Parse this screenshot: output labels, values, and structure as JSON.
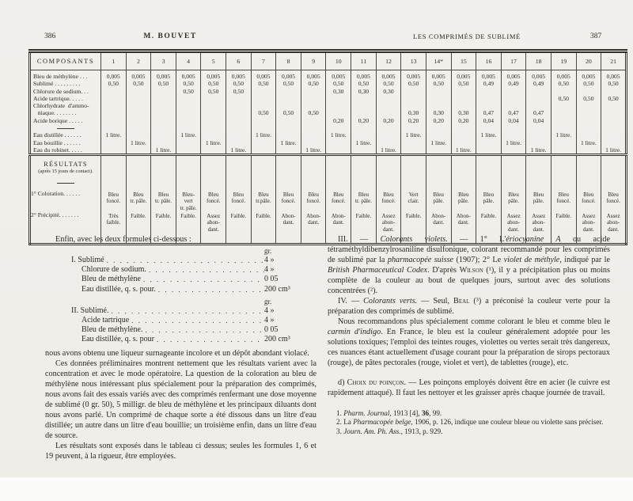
{
  "page": {
    "paper_color": "#f1efeb",
    "ink_color": "#2b2922",
    "header": {
      "left_page": "386",
      "left_title": "M. BOUVET",
      "right_title": "LES COMPRIMÉS DE SUBLIMÉ",
      "right_page": "387"
    }
  },
  "table": {
    "composants_header": "COMPOSANTS",
    "columns": [
      "1",
      "2",
      "3",
      "4",
      "5",
      "6",
      "7",
      "8",
      "9",
      "10",
      "11",
      "12",
      "13",
      "14*",
      "15",
      "16",
      "17",
      "18",
      "19",
      "20",
      "21"
    ],
    "divider_index": 7,
    "line_labels": [
      "Bleu de méthylène . . .",
      "Sublimé . . . . . . . . .",
      "Chlorure de sodium. . .",
      "Acide tartrique. . . . .",
      "Chlorhydrate  d'ammo-",
      "   niaque. . . . . . . .",
      "Acide borique . . . . .",
      "",
      "Eau distillée . . . . . .",
      "Eau bouillie . . . . . .",
      "Eau du robinet. . . . ."
    ],
    "cells": [
      [
        "0,005",
        "0,50",
        "",
        "",
        "",
        "",
        "",
        "",
        "1 litre.",
        "",
        ""
      ],
      [
        "0,005",
        "0,50",
        "",
        "",
        "",
        "",
        "",
        "",
        "",
        "1 litre.",
        ""
      ],
      [
        "0,005",
        "0,50",
        "",
        "",
        "",
        "",
        "",
        "",
        "",
        "",
        "1 litre."
      ],
      [
        "0,005",
        "0,50",
        "0,50",
        "",
        "",
        "",
        "",
        "",
        "1 litre.",
        "",
        ""
      ],
      [
        "0,005",
        "0,50",
        "0,50",
        "",
        "",
        "",
        "",
        "",
        "",
        "1 litre.",
        ""
      ],
      [
        "0,005",
        "0,50",
        "0,50",
        "",
        "",
        "",
        "",
        "",
        "",
        "",
        "1 litre."
      ],
      [
        "0,005",
        "0,50",
        "",
        "",
        "",
        "0,50",
        "",
        "",
        "1 litre.",
        "",
        ""
      ],
      [
        "0,005",
        "0,50",
        "",
        "",
        "",
        "0,50",
        "",
        "",
        "",
        "1 litre.",
        ""
      ],
      [
        "0,005",
        "0,50",
        "",
        "",
        "",
        "0,50",
        "",
        "",
        "",
        "",
        "1 litre."
      ],
      [
        "0,005",
        "0,50",
        "0,30",
        "",
        "",
        "",
        "0,20",
        "",
        "1 litre.",
        "",
        ""
      ],
      [
        "0,005",
        "0,50",
        "0,30",
        "",
        "",
        "",
        "0,20",
        "",
        "",
        "1 litre.",
        ""
      ],
      [
        "0,005",
        "0,50",
        "0,30",
        "",
        "",
        "",
        "0,20",
        "",
        "",
        "",
        "1 litre."
      ],
      [
        "0,005",
        "0,50",
        "",
        "",
        "",
        "0,30",
        "0,20",
        "",
        "1 litre.",
        "",
        ""
      ],
      [
        "0,005",
        "0,50",
        "",
        "",
        "",
        "0,30",
        "0,20",
        "",
        "",
        "1 litre.",
        ""
      ],
      [
        "0,005",
        "0,50",
        "",
        "",
        "",
        "0,30",
        "0,20",
        "",
        "",
        "",
        "1 litre."
      ],
      [
        "0,005",
        "0,49",
        "",
        "",
        "",
        "0,47",
        "0,04",
        "",
        "1 litre.",
        "",
        ""
      ],
      [
        "0,005",
        "0,49",
        "",
        "",
        "",
        "0,47",
        "0,04",
        "",
        "",
        "1 litre.",
        ""
      ],
      [
        "0,005",
        "0,49",
        "",
        "",
        "",
        "0,47",
        "0,04",
        "",
        "",
        "",
        "1 litre."
      ],
      [
        "0,005",
        "0,50",
        "",
        "0,50",
        "",
        "",
        "",
        "",
        "1 litre.",
        "",
        ""
      ],
      [
        "0,005",
        "0,50",
        "",
        "0,50",
        "",
        "",
        "",
        "",
        "",
        "1 litre.",
        ""
      ],
      [
        "0,005",
        "0,50",
        "",
        "0,50",
        "",
        "",
        "",
        "",
        "",
        "",
        "1 litre."
      ]
    ],
    "results": {
      "title": "RÉSULTATS",
      "subtitle": "(après 15 jours de contact).",
      "coloration_label": "1° Coloration. . . . . .",
      "precipite_label": "2° Précipité. . . . . . .",
      "coloration": [
        "Bleu\nfoncé.",
        "Bleu\ntr. pâle.",
        "Bleu\ntr. pâle.",
        "Bleu-\nvert\ntr. pâle.",
        "Bleu\nfoncé.",
        "Bleu\nfoncé.",
        "Bleu\ntr.pâle.",
        "Bleu\nfoncé.",
        "Bleu\nfoncé.",
        "Bleu\nfoncé.",
        "Bleu\ntr. pâle.",
        "Bleu\nfoncé.",
        "Vert\nclair.",
        "Bleu\npâle.",
        "Bleu\npâle.",
        "Bleu\npâle.",
        "Bleu\npâle.",
        "Bleu\npâle.",
        "Bleu\nfoncé.",
        "Bleu\nfoncé.",
        "Bleu\nfoncé."
      ],
      "precipite": [
        "Très\nfaible.",
        "Faible.",
        "Faible.",
        "Faible.",
        "Assez\nabon-\ndant.",
        "Faible.",
        "Faible.",
        "Abon-\ndant.",
        "Abon-\ndant.",
        "Abon-\ndant.",
        "Faible.",
        "Assez\nabon-\ndant.",
        "Faible.",
        "Abon-\ndant.",
        "Abon-\ndant.",
        "Faible.",
        "Assez\nabon-\ndant.",
        "Assez\nabon-\ndant.",
        "Faible.",
        "Assez\nabon-\ndant.",
        "Assez\nabon-\ndant."
      ]
    }
  },
  "left_column": {
    "intro": "Enfin, avec les deux formules ci-dessous :",
    "formulas": [
      {
        "unit": "gr.",
        "rows": [
          {
            "label": "I. Sublimé",
            "value": "4  »"
          },
          {
            "label": "Chlorure de sodium.",
            "value": "4  »"
          },
          {
            "label": "Bleu de méthylène",
            "value": "0 05"
          },
          {
            "label": "Eau distillée, q. s. pour.",
            "value": "200 cm³"
          }
        ]
      },
      {
        "unit": "gr.",
        "rows": [
          {
            "label": "II. Sublimé.",
            "value": "4  »"
          },
          {
            "label": "Acide tartrique",
            "value": "4  »"
          },
          {
            "label": "Bleu de méthylène.",
            "value": "0 05"
          },
          {
            "label": "Eau distillée, q. s. pour",
            "value": "200 cm³"
          }
        ]
      }
    ],
    "paragraphs": [
      {
        "indent": false,
        "spaced": false,
        "segments": [
          {
            "text": "nous avons obtenu une liqueur surnageante incolore et un dépôt abondant violacé."
          }
        ]
      },
      {
        "indent": true,
        "spaced": false,
        "segments": [
          {
            "text": "Ces données préliminaires montrent nettement que les résultats varient avec la concentration et avec le mode opératoire. La question de la coloration au bleu de méthylène nous intéressant plus spécialement pour la préparation des comprimés, nous avons fait des essais variés avec des comprimés renfermant une dose moyenne de sublimé (0 gr. 50), 5 milligr. de bleu de méthylène et les principaux diluants dont nous avons parlé. Un comprimé de chaque sorte a été dissous dans un litre d'eau distillée; un autre dans un litre d'eau bouillie; un troisième enfin, dans un litre d'eau de source."
          }
        ]
      },
      {
        "indent": true,
        "spaced": false,
        "segments": [
          {
            "text": "Les résultats sont exposés dans le tableau ci dessus; seules les formules 1, 6 et 19 peuvent, à la rigueur, être employées."
          }
        ]
      }
    ]
  },
  "right_column": {
    "paragraphs": [
      {
        "indent": true,
        "spaced": false,
        "segments": [
          {
            "text": "III. — "
          },
          {
            "text": "Colorants violets.",
            "style": "italic"
          },
          {
            "text": " — 1° L'"
          },
          {
            "text": "ériocyanine A",
            "style": "italic"
          },
          {
            "text": " ou acide tétraméthyldibenzylrosaniline disulfonique, colorant recommandé pour les comprimés de sublimé par la "
          },
          {
            "text": "pharmacopée suisse",
            "style": "italic"
          },
          {
            "text": " (1907); 2° Le "
          },
          {
            "text": "violet de méthyle",
            "style": "italic"
          },
          {
            "text": ", indiqué par le "
          },
          {
            "text": "British Pharmaceutical Codex",
            "style": "italic"
          },
          {
            "text": ". D'après "
          },
          {
            "text": "Wilson",
            "style": "smallcaps"
          },
          {
            "text": " (¹), il y a précipitation plus ou moins complète de la couleur au bout de quelques jours, surtout avec des solutions concentrées (²)."
          }
        ]
      },
      {
        "indent": true,
        "spaced": false,
        "segments": [
          {
            "text": "IV. — "
          },
          {
            "text": "Colorants verts.",
            "style": "italic"
          },
          {
            "text": " — Seul, "
          },
          {
            "text": "Beal",
            "style": "smallcaps"
          },
          {
            "text": " (³) a préconisé la couleur verte pour la préparation des comprimés de sublimé."
          }
        ]
      },
      {
        "indent": true,
        "spaced": false,
        "segments": [
          {
            "text": "Nous recommandons plus spécialement comme colorant le bleu et comme bleu le "
          },
          {
            "text": "carmin d'indigo",
            "style": "italic"
          },
          {
            "text": ". En France, le bleu est la couleur généralement adoptée pour les solutions toxiques; l'emploi des teintes rouges, violettes ou vertes serait très dangereux, ces nuances étant actuellement d'usage courant pour la préparation de sirops pectoraux (rouge), de pâtes pectorales (rouge, violet et vert), de tablettes (rouge), etc."
          }
        ]
      },
      {
        "indent": true,
        "spaced": true,
        "segments": [
          {
            "text": "d) "
          },
          {
            "text": "Choix du poinçon",
            "style": "smallcaps"
          },
          {
            "text": ". — Les poinçons employés doivent être en acier (le cuivre est rapidement attaqué). Il faut les nettoyer et les graisser après chaque journée de travail."
          }
        ]
      }
    ],
    "footnotes": [
      {
        "segments": [
          {
            "text": "1. "
          },
          {
            "text": "Pharm. Journal",
            "style": "italic"
          },
          {
            "text": ", 1913 [4], "
          },
          {
            "text": "36",
            "style": "bold"
          },
          {
            "text": ", 99."
          }
        ]
      },
      {
        "segments": [
          {
            "text": "2. La "
          },
          {
            "text": "Pharmacopée belge",
            "style": "italic"
          },
          {
            "text": ", 1906, p. 126, indique une couleur bleue ou violette sans préciser."
          }
        ]
      },
      {
        "segments": [
          {
            "text": "3. "
          },
          {
            "text": "Journ. Am. Ph. Ass.",
            "style": "italic"
          },
          {
            "text": ", 1913, p. 929."
          }
        ]
      }
    ]
  }
}
